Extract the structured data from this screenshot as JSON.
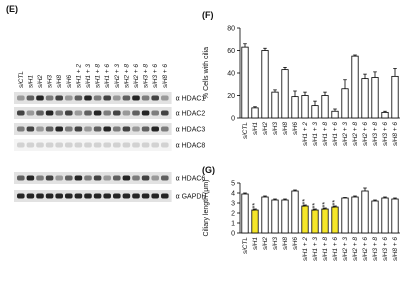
{
  "figure": {
    "blot": {
      "panel_label": "(E)",
      "lanes": [
        "siCTL",
        "siH1",
        "siH2",
        "siH3",
        "siH8",
        "siH6",
        "siH1 + 2",
        "siH1 + 3",
        "siH1 + 8",
        "siH1 + 6",
        "siH2 + 3",
        "siH2 + 8",
        "siH2 + 6",
        "siH3 + 8",
        "siH3 + 6",
        "siH8 + 6"
      ],
      "rows": [
        "α HDAC1",
        "α HDAC2",
        "α HDAC3",
        "α HDAC8",
        "α HDAC6",
        "α GAPDH"
      ]
    }
  },
  "chart_data": [
    {
      "type": "bar",
      "panel_label": "(F)",
      "y_label": "% Cells with cilia",
      "categories": [
        "siCTL",
        "siH1",
        "siH2",
        "siH3",
        "siH8",
        "siH6",
        "siH1 + 2",
        "siH1 + 3",
        "siH1 + 8",
        "siH1 + 6",
        "siH2 + 3",
        "siH2 + 8",
        "siH2 + 6",
        "siH3 + 8",
        "siH3 + 6",
        "siH8 + 6"
      ],
      "values": [
        63,
        9,
        60,
        23,
        43,
        19,
        20,
        11,
        20,
        6,
        26,
        55,
        35,
        36,
        5,
        37
      ],
      "errors": [
        3,
        1,
        2,
        2,
        2,
        5,
        3,
        4,
        3,
        2,
        8,
        1,
        4,
        5,
        1,
        7
      ],
      "colors": [
        "#ffffff",
        "#ffffff",
        "#ffffff",
        "#ffffff",
        "#ffffff",
        "#ffffff",
        "#ffffff",
        "#ffffff",
        "#ffffff",
        "#ffffff",
        "#ffffff",
        "#ffffff",
        "#ffffff",
        "#ffffff",
        "#ffffff",
        "#ffffff"
      ],
      "significance": [
        null,
        null,
        null,
        null,
        null,
        null,
        null,
        null,
        null,
        null,
        null,
        null,
        null,
        null,
        null,
        null
      ],
      "ylim": [
        0,
        80
      ],
      "yticks": [
        0,
        20,
        40,
        60,
        80
      ]
    },
    {
      "type": "bar",
      "panel_label": "(G)",
      "y_label": "Ciliary length (μm)",
      "categories": [
        "siCTL",
        "siH1",
        "siH2",
        "siH3",
        "siH8",
        "siH6",
        "siH1 + 2",
        "siH1 + 3",
        "siH1 + 8",
        "siH1 + 6",
        "siH2 + 3",
        "siH2 + 8",
        "siH2 + 6",
        "siH3 + 8",
        "siH3 + 6",
        "siH8 + 6"
      ],
      "values": [
        3.9,
        2.3,
        3.6,
        3.3,
        3.3,
        4.2,
        2.7,
        2.3,
        2.4,
        2.6,
        3.5,
        3.6,
        4.2,
        3.2,
        3.5,
        3.4
      ],
      "errors": [
        0.1,
        0.1,
        0.1,
        0.1,
        0.1,
        0.1,
        0.1,
        0.1,
        0.1,
        0.1,
        0.05,
        0.1,
        0.3,
        0.1,
        0.1,
        0.1
      ],
      "colors": [
        "#ffffff",
        "#f5e62a",
        "#ffffff",
        "#ffffff",
        "#ffffff",
        "#ffffff",
        "#f5e62a",
        "#f5e62a",
        "#f5e62a",
        "#f5e62a",
        "#ffffff",
        "#ffffff",
        "#ffffff",
        "#ffffff",
        "#ffffff",
        "#ffffff"
      ],
      "significance": [
        null,
        "***",
        null,
        null,
        null,
        null,
        "***",
        "***",
        "***",
        "***",
        null,
        null,
        null,
        null,
        null,
        null
      ],
      "ylim": [
        0,
        5
      ],
      "yticks": [
        0,
        1,
        2,
        3,
        4,
        5
      ]
    }
  ]
}
